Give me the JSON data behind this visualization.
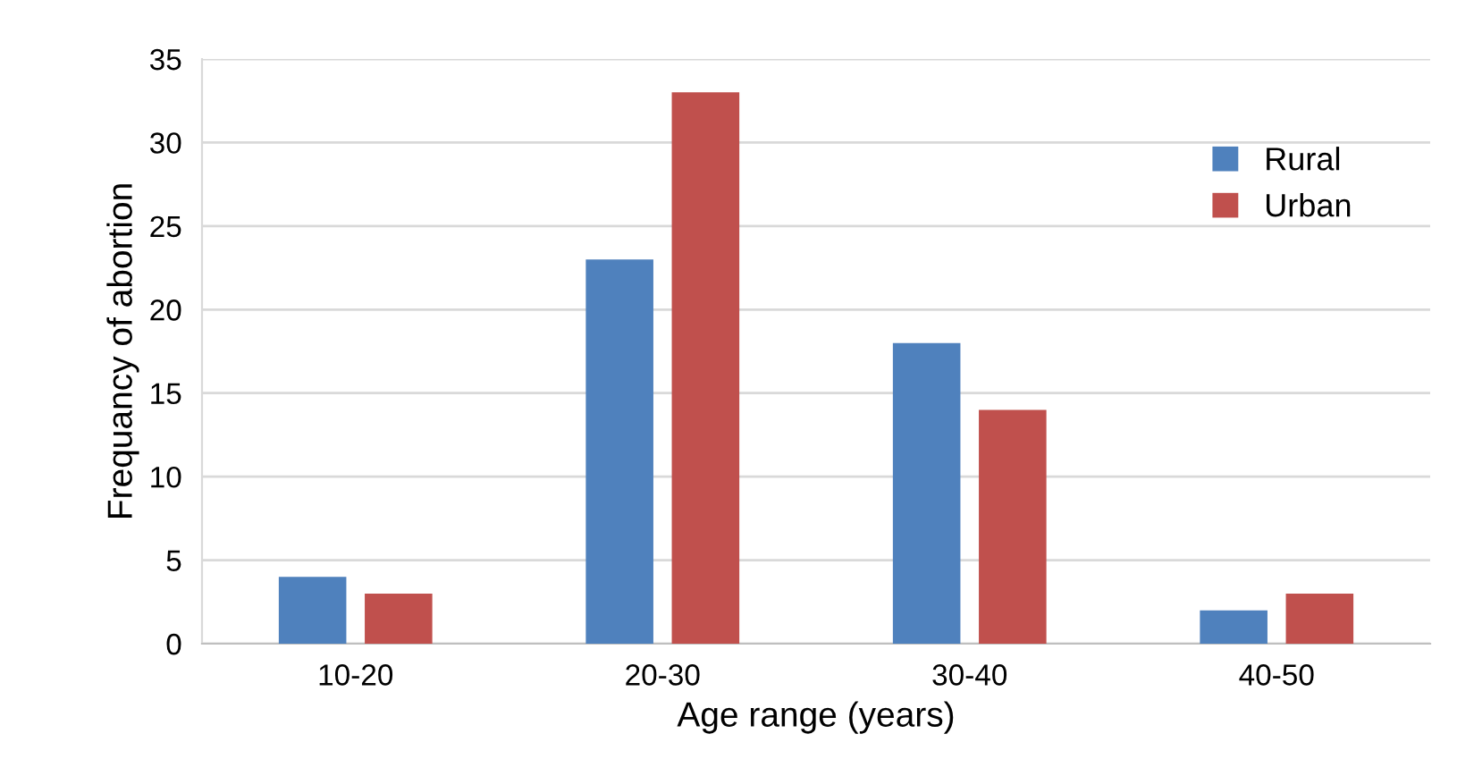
{
  "chart_data": {
    "type": "bar",
    "xlabel": "Age range (years)",
    "ylabel": "Frequancy of abortion",
    "categories": [
      "10-20",
      "20-30",
      "30-40",
      "40-50"
    ],
    "series": [
      {
        "name": "Rural",
        "color": "#4f81bd",
        "values": [
          4,
          23,
          18,
          2
        ]
      },
      {
        "name": "Urban",
        "color": "#c0504d",
        "values": [
          3,
          33,
          14,
          3
        ]
      }
    ],
    "ylim": [
      0,
      35
    ],
    "yticks": [
      0,
      5,
      10,
      15,
      20,
      25,
      30,
      35
    ],
    "grid": "y",
    "legend": "top right"
  }
}
